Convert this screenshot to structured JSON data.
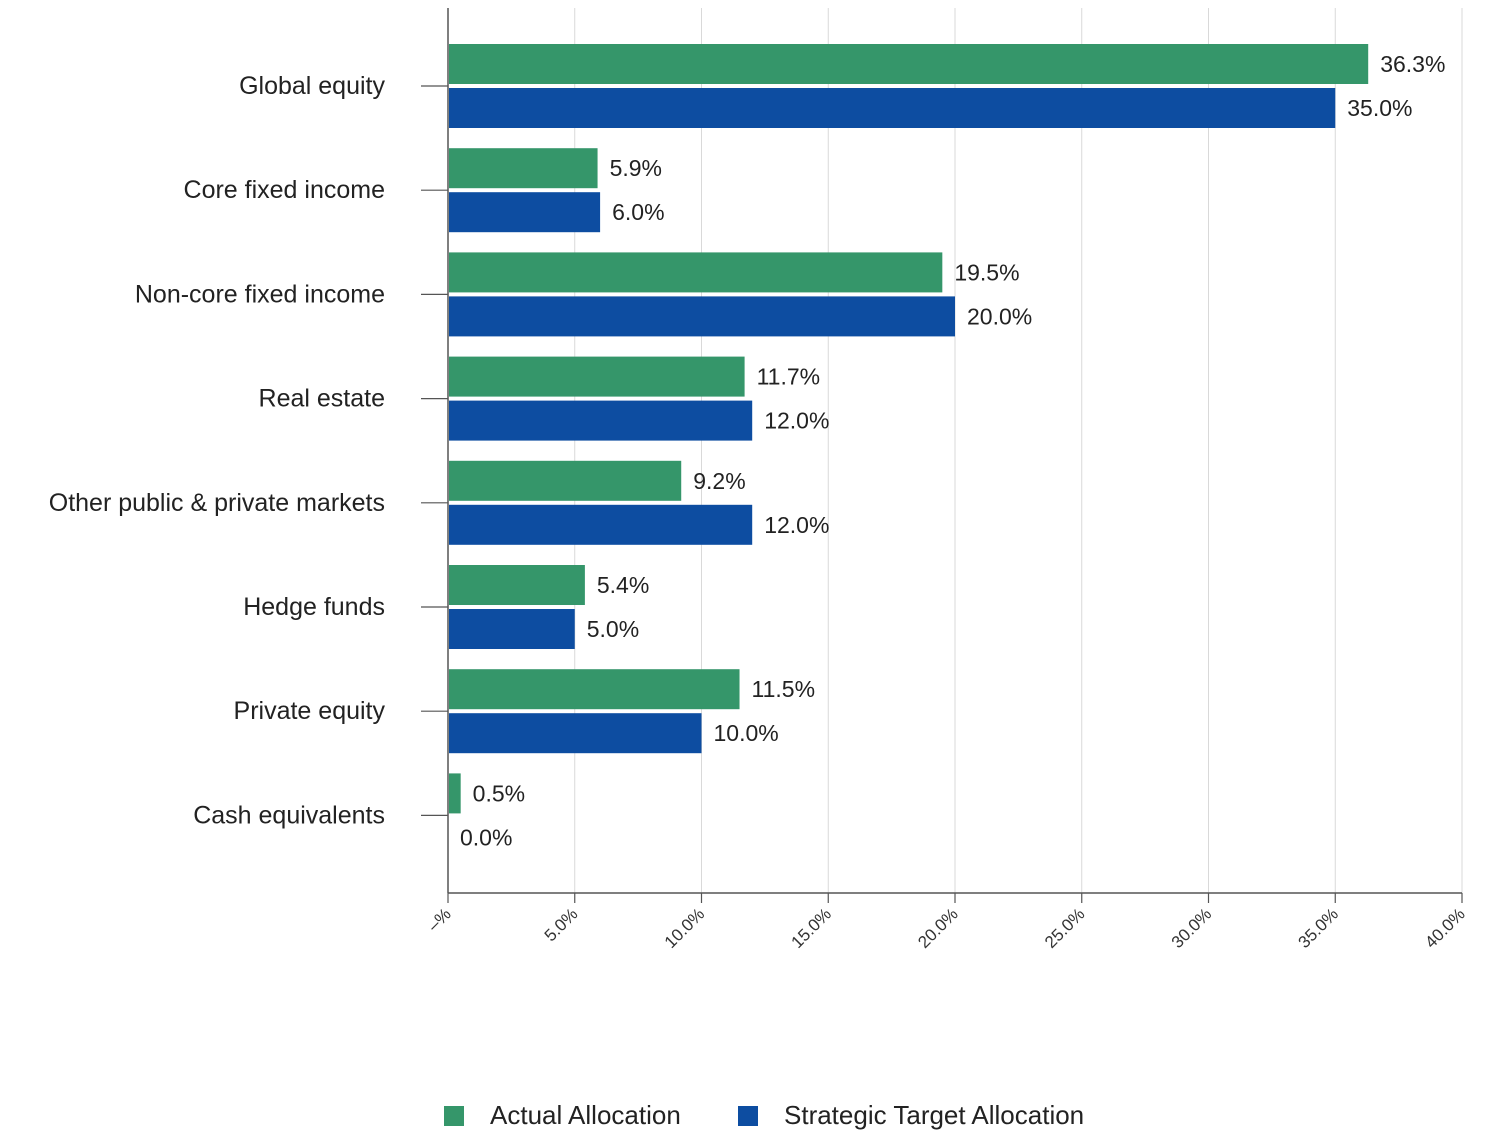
{
  "chart_data": {
    "type": "bar",
    "orientation": "horizontal",
    "categories": [
      "Global equity",
      "Core fixed income",
      "Non-core fixed income",
      "Real estate",
      "Other public & private markets",
      "Hedge funds",
      "Private equity",
      "Cash equivalents"
    ],
    "series": [
      {
        "name": "Actual Allocation",
        "color": "#35966A",
        "values": [
          36.3,
          5.9,
          19.5,
          11.7,
          9.2,
          5.4,
          11.5,
          0.5
        ],
        "labels": [
          "36.3%",
          "5.9%",
          "19.5%",
          "11.7%",
          "9.2%",
          "5.4%",
          "11.5%",
          "0.5%"
        ]
      },
      {
        "name": "Strategic Target Allocation",
        "color": "#0D4DA1",
        "values": [
          35.0,
          6.0,
          20.0,
          12.0,
          12.0,
          5.0,
          10.0,
          0.0
        ],
        "labels": [
          "35.0%",
          "6.0%",
          "20.0%",
          "12.0%",
          "12.0%",
          "5.0%",
          "10.0%",
          "0.0%"
        ]
      }
    ],
    "xlim": [
      0,
      40
    ],
    "xticks": [
      0,
      5,
      10,
      15,
      20,
      25,
      30,
      35,
      40
    ],
    "xtick_labels": [
      "–%",
      "5.0%",
      "10.0%",
      "15.0%",
      "20.0%",
      "25.0%",
      "30.0%",
      "35.0%",
      "40.0%"
    ],
    "grid": true,
    "legend_position": "bottom-center"
  }
}
